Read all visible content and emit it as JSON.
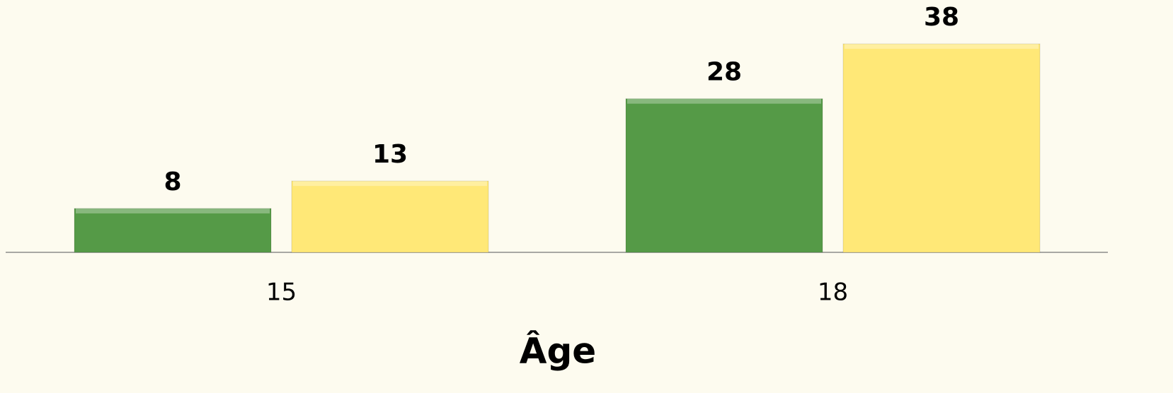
{
  "chart_data": {
    "type": "bar",
    "xlabel": "Âge",
    "categories": [
      "15",
      "18"
    ],
    "series": [
      {
        "color": "#559a47",
        "values": [
          8,
          28
        ]
      },
      {
        "color": "#ffe877",
        "values": [
          13,
          38
        ]
      }
    ],
    "ylim": [
      0,
      46
    ]
  }
}
